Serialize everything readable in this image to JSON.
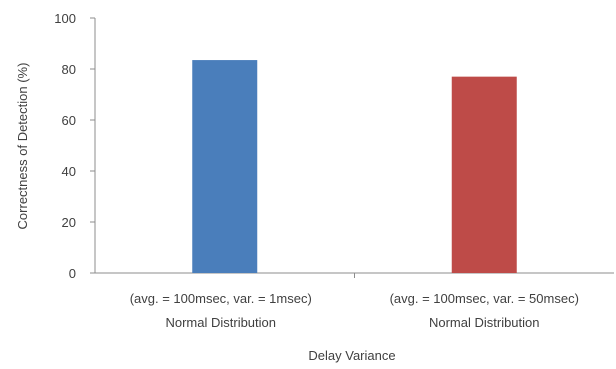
{
  "chart_data": {
    "type": "bar",
    "categories": [
      [
        "(avg. = 100msec, var. = 1msec)",
        "Normal Distribution"
      ],
      [
        "(avg. = 100msec, var. = 50msec)",
        "Normal Distribution"
      ]
    ],
    "values": [
      83.5,
      77
    ],
    "colors": [
      "#4a7ebb",
      "#be4b48"
    ],
    "title": "",
    "xlabel": "Delay Variance",
    "ylabel": "Correctness of Detection (%)",
    "ylim": [
      0,
      100
    ],
    "yticks": [
      "0",
      "20",
      "40",
      "60",
      "80",
      "100"
    ],
    "grid": false,
    "legend": "none"
  }
}
